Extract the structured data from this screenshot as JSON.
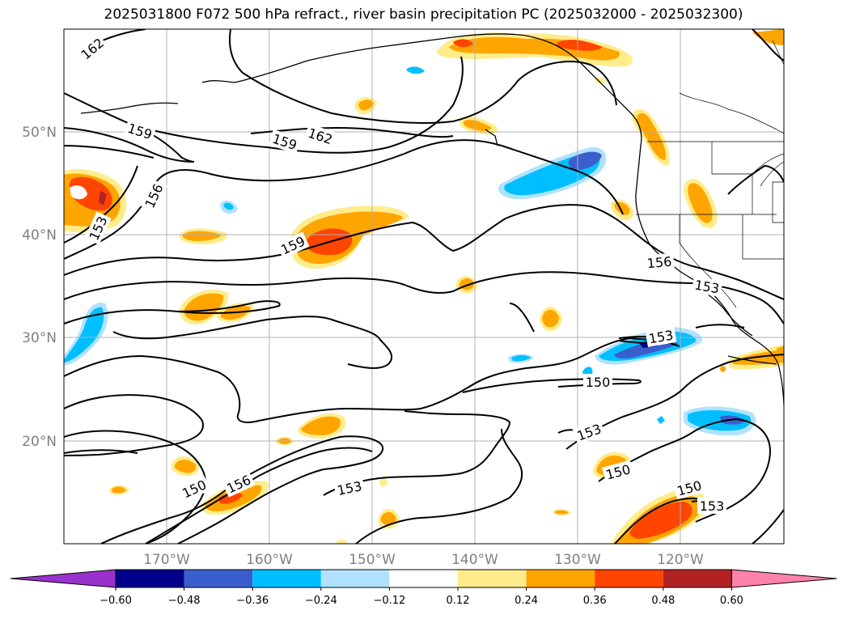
{
  "title": "2025031800 F072 500 hPa refract., river basin precipitation PC (2025032000 - 2025032300)",
  "map": {
    "lat_labels": [
      "50°N",
      "40°N",
      "30°N",
      "20°N"
    ],
    "lon_labels": [
      "170°W",
      "160°W",
      "150°W",
      "140°W",
      "130°W",
      "120°W"
    ],
    "contour_labels": [
      "162",
      "159",
      "159",
      "162",
      "156",
      "153",
      "159",
      "156",
      "153",
      "153",
      "150",
      "153",
      "150",
      "150",
      "156",
      "153",
      "150",
      "153"
    ]
  },
  "colorbar": {
    "ticks": [
      "−0.60",
      "−0.48",
      "−0.36",
      "−0.24",
      "−0.12",
      "0.12",
      "0.24",
      "0.36",
      "0.48",
      "0.60"
    ],
    "colors": [
      "#9932cc",
      "#00008b",
      "#3a5fcd",
      "#00bfff",
      "#b0e2ff",
      "#ffffff",
      "#ffec8b",
      "#ffa500",
      "#ff4500",
      "#b22222",
      "#ff82ab"
    ]
  },
  "colors": {
    "fill_yellow": "#ffec8b",
    "fill_orange": "#ffa500",
    "fill_red": "#ff4500",
    "fill_darkred": "#b22222",
    "fill_lightblue": "#b0e2ff",
    "fill_cyan": "#00bfff",
    "fill_blue": "#3a5fcd",
    "fill_navy": "#00008b"
  }
}
